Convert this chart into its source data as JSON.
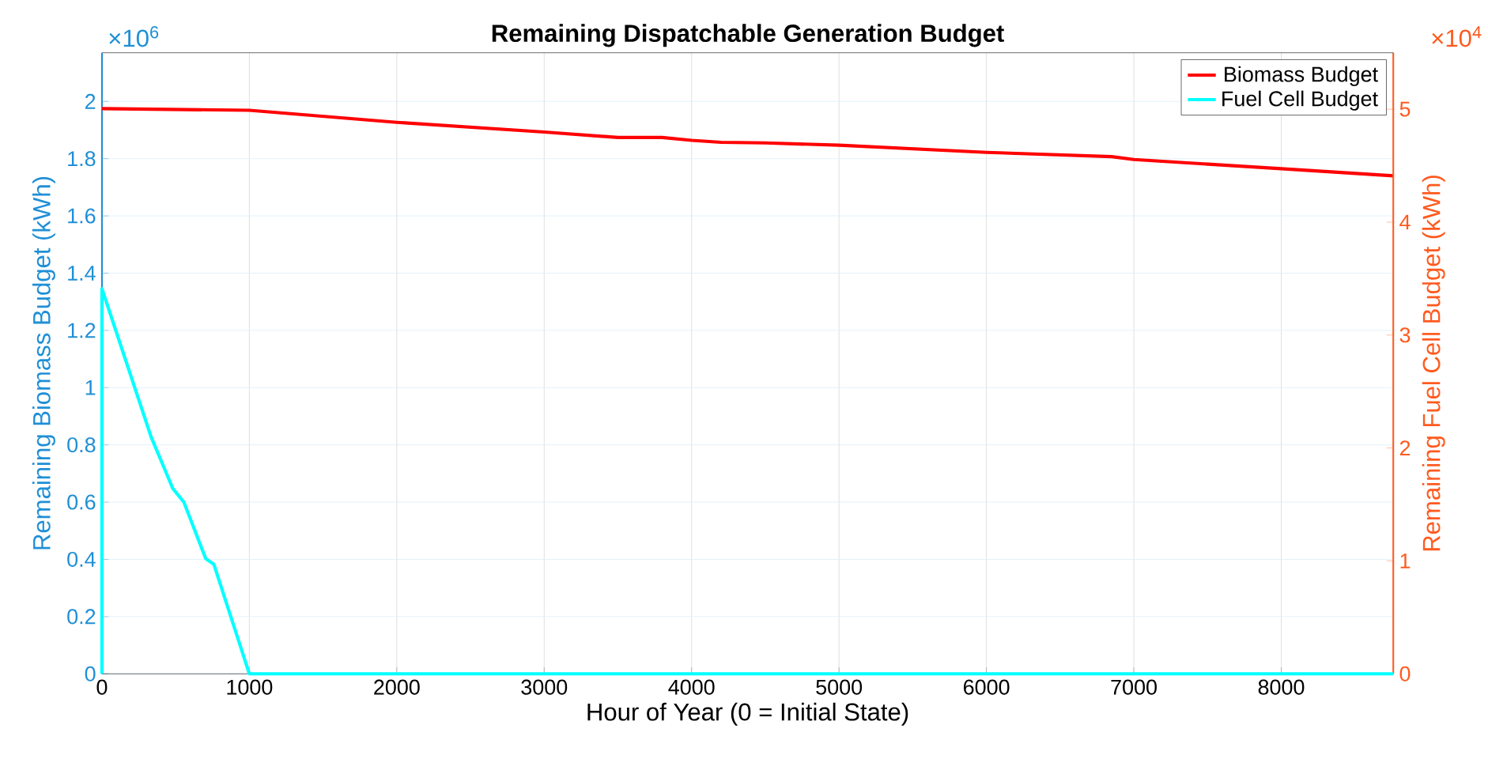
{
  "chart_data": {
    "type": "line",
    "title": "Remaining Dispatchable Generation Budget",
    "xlabel": "Hour of Year (0 = Initial State)",
    "ylabel": "Remaining Biomass Budget (kWh)",
    "y2label": "Remaining Fuel Cell Budget (kWh)",
    "annotations": [
      "×10$^{6}$",
      "×10$^{4}$"
    ],
    "xlim": [
      0,
      8760
    ],
    "xticks": [
      0,
      1000,
      2000,
      3000,
      4000,
      5000,
      6000,
      7000,
      8000
    ],
    "ylim": [
      0,
      2.17
    ],
    "yticks": [
      0,
      0.2,
      0.4,
      0.6,
      0.8,
      1,
      1.2,
      1.4,
      1.6,
      1.8,
      2
    ],
    "y2lim": [
      0,
      5.5
    ],
    "y2ticks": [
      0,
      1,
      2,
      3,
      4,
      5
    ],
    "grid": true,
    "legend": "top right",
    "series": [
      {
        "name": "Biomass Budget",
        "color": "#ff0000",
        "x": [
          0,
          1000,
          2000,
          3000,
          3500,
          3800,
          4000,
          4200,
          4500,
          5000,
          6000,
          6850,
          7000,
          8000,
          8760
        ],
        "values": [
          1.975,
          1.969,
          1.927,
          1.893,
          1.874,
          1.874,
          1.864,
          1.857,
          1.855,
          1.847,
          1.822,
          1.807,
          1.797,
          1.765,
          1.74
        ]
      },
      {
        "name": "Fuel Cell Budget",
        "color": "#00ffff",
        "axis": "y2",
        "x": [
          0,
          0,
          333,
          481,
          556,
          704,
          759,
          1000,
          8760
        ],
        "values": [
          0,
          3.41,
          2.1,
          1.64,
          1.52,
          1.02,
          0.97,
          0,
          0
        ]
      }
    ]
  }
}
